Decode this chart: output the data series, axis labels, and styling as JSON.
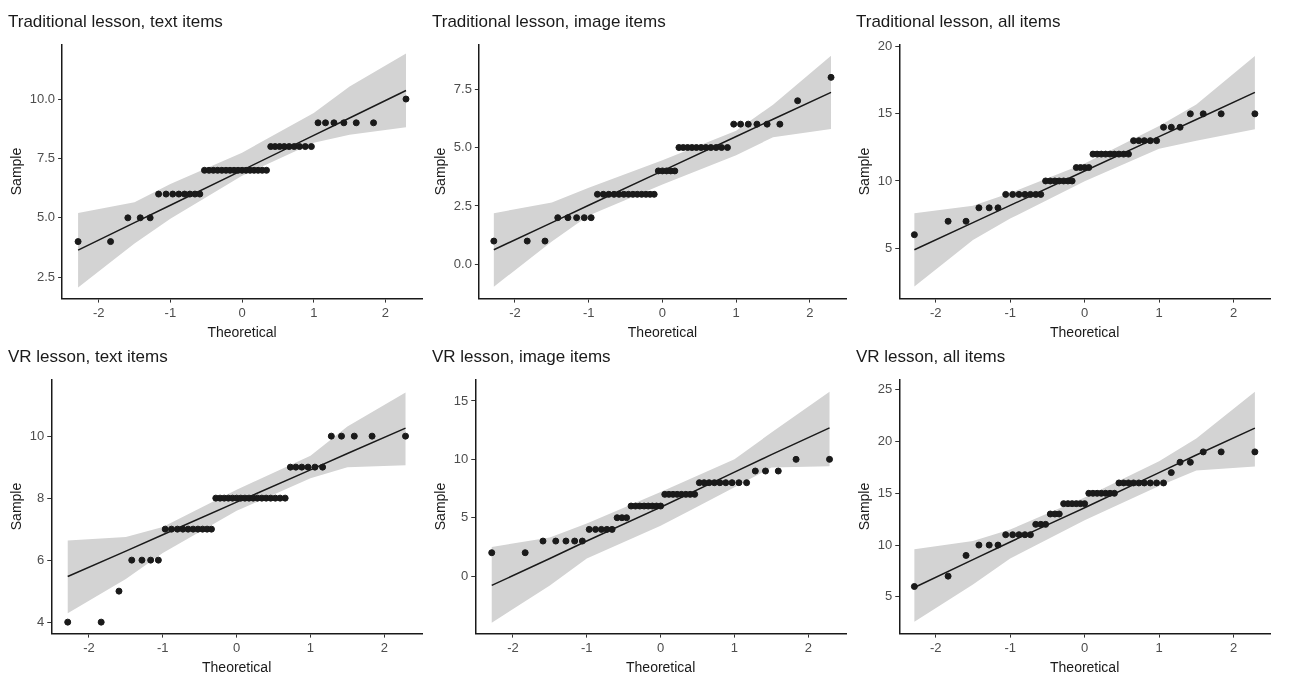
{
  "chart_data": [
    {
      "type": "scatter",
      "title": "Traditional lesson, text items",
      "xlabel": "Theoretical",
      "ylabel": "Sample",
      "grid": false,
      "xlim": [
        -2.51,
        2.51
      ],
      "xticks": [
        -2,
        -1,
        0,
        1,
        2
      ],
      "ylim": [
        1.6,
        12.3
      ],
      "yticks": [
        {
          "value": 2.5,
          "label": "2.5"
        },
        {
          "value": 5,
          "label": "5.0"
        },
        {
          "value": 7.5,
          "label": "7.5"
        },
        {
          "value": 10,
          "label": "10.0"
        }
      ],
      "x": [
        -2.287,
        -1.834,
        -1.593,
        -1.42,
        -1.282,
        -1.164,
        -1.06,
        -0.967,
        -0.882,
        -0.802,
        -0.728,
        -0.657,
        -0.589,
        -0.524,
        -0.461,
        -0.4,
        -0.341,
        -0.282,
        -0.224,
        -0.168,
        -0.112,
        -0.056,
        0,
        0.056,
        0.112,
        0.168,
        0.224,
        0.282,
        0.341,
        0.4,
        0.461,
        0.524,
        0.589,
        0.657,
        0.728,
        0.802,
        0.882,
        0.967,
        1.06,
        1.164,
        1.282,
        1.42,
        1.593,
        1.834,
        2.287
      ],
      "series": [
        {
          "marker": "circle",
          "color": "#1a1a1a",
          "values": [
            4,
            4,
            5,
            5,
            5,
            6,
            6,
            6,
            6,
            6,
            6,
            6,
            6,
            7,
            7,
            7,
            7,
            7,
            7,
            7,
            7,
            7,
            7,
            7,
            7,
            7,
            7,
            7,
            7,
            8,
            8,
            8,
            8,
            8,
            8,
            8,
            8,
            8,
            9,
            9,
            9,
            9,
            9,
            9,
            10
          ]
        },
        {
          "type": "line",
          "color": "#1a1a1a",
          "x": [
            -2.287,
            -1.5,
            -1,
            0,
            1,
            1.5,
            2.287
          ],
          "values": [
            3.64,
            4.8,
            5.53,
            7.0,
            8.47,
            9.2,
            10.36
          ],
          "lower": [
            2.07,
            3.92,
            4.96,
            6.77,
            8.16,
            8.5,
            8.81
          ],
          "upper": [
            5.2,
            5.66,
            6.42,
            7.74,
            9.41,
            10.53,
            11.92
          ]
        }
      ]
    },
    {
      "type": "scatter",
      "title": "Traditional lesson, image items",
      "xlabel": "Theoretical",
      "ylabel": "Sample",
      "grid": false,
      "xlim": [
        -2.49,
        2.49
      ],
      "xticks": [
        -2,
        -1,
        0,
        1,
        2
      ],
      "ylim": [
        -1.46,
        9.41
      ],
      "yticks": [
        {
          "value": 0,
          "label": "0.0"
        },
        {
          "value": 2.5,
          "label": "2.5"
        },
        {
          "value": 5,
          "label": "5.0"
        },
        {
          "value": 7.5,
          "label": "7.5"
        }
      ],
      "x": [
        -2.287,
        -1.834,
        -1.593,
        -1.42,
        -1.282,
        -1.164,
        -1.06,
        -0.967,
        -0.882,
        -0.802,
        -0.728,
        -0.657,
        -0.589,
        -0.524,
        -0.461,
        -0.4,
        -0.341,
        -0.282,
        -0.224,
        -0.168,
        -0.112,
        -0.056,
        0,
        0.056,
        0.112,
        0.168,
        0.224,
        0.282,
        0.341,
        0.4,
        0.461,
        0.524,
        0.589,
        0.657,
        0.728,
        0.802,
        0.882,
        0.967,
        1.06,
        1.164,
        1.282,
        1.42,
        1.593,
        1.834,
        2.287
      ],
      "series": [
        {
          "marker": "circle",
          "color": "#1a1a1a",
          "values": [
            1,
            1,
            1,
            2,
            2,
            2,
            2,
            2,
            3,
            3,
            3,
            3,
            3,
            3,
            3,
            3,
            3,
            3,
            3,
            3,
            3,
            4,
            4,
            4,
            4,
            4,
            5,
            5,
            5,
            5,
            5,
            5,
            5,
            5,
            5,
            5,
            5,
            6,
            6,
            6,
            6,
            6,
            6,
            7,
            8
          ]
        },
        {
          "type": "line",
          "color": "#1a1a1a",
          "x": [
            -2.287,
            -1.5,
            -1,
            0,
            1,
            1.5,
            2.287
          ],
          "values": [
            0.63,
            1.79,
            2.53,
            4.0,
            5.47,
            6.21,
            7.36
          ],
          "lower": [
            -0.95,
            0.98,
            2.09,
            3.42,
            4.67,
            5.44,
            5.79
          ],
          "upper": [
            2.19,
            2.65,
            3.28,
            4.46,
            5.72,
            6.83,
            8.93
          ]
        }
      ]
    },
    {
      "type": "scatter",
      "title": "Traditional lesson, all items",
      "xlabel": "Theoretical",
      "ylabel": "Sample",
      "grid": false,
      "xlim": [
        -2.49,
        2.49
      ],
      "xticks": [
        -2,
        -1,
        0,
        1,
        2
      ],
      "ylim": [
        1.24,
        20.17
      ],
      "yticks": [
        5,
        10,
        15,
        20
      ],
      "x": [
        -2.287,
        -1.834,
        -1.593,
        -1.42,
        -1.282,
        -1.164,
        -1.06,
        -0.967,
        -0.882,
        -0.802,
        -0.728,
        -0.657,
        -0.589,
        -0.524,
        -0.461,
        -0.4,
        -0.341,
        -0.282,
        -0.224,
        -0.168,
        -0.112,
        -0.056,
        0,
        0.056,
        0.112,
        0.168,
        0.224,
        0.282,
        0.341,
        0.4,
        0.461,
        0.524,
        0.589,
        0.657,
        0.728,
        0.802,
        0.882,
        0.967,
        1.06,
        1.164,
        1.282,
        1.42,
        1.593,
        1.834,
        2.287
      ],
      "series": [
        {
          "marker": "circle",
          "color": "#1a1a1a",
          "values": [
            6,
            7,
            7,
            8,
            8,
            8,
            9,
            9,
            9,
            9,
            9,
            9,
            9,
            10,
            10,
            10,
            10,
            10,
            10,
            10,
            11,
            11,
            11,
            11,
            12,
            12,
            12,
            12,
            12,
            12,
            12,
            12,
            12,
            13,
            13,
            13,
            13,
            13,
            14,
            14,
            14,
            15,
            15,
            15,
            15
          ]
        },
        {
          "type": "line",
          "color": "#1a1a1a",
          "x": [
            -2.287,
            -1.5,
            -1,
            0,
            1,
            1.5,
            2.287
          ],
          "values": [
            4.88,
            6.9,
            8.18,
            10.74,
            13.3,
            14.58,
            16.6
          ],
          "lower": [
            2.14,
            5.6,
            7.2,
            9.98,
            12.4,
            13.0,
            13.86
          ],
          "upper": [
            7.6,
            8.15,
            9.1,
            11.3,
            14.1,
            15.7,
            19.3
          ]
        }
      ]
    },
    {
      "type": "scatter",
      "title": "VR lesson, text items",
      "xlabel": "Theoretical",
      "ylabel": "Sample",
      "grid": false,
      "xlim": [
        -2.51,
        2.51
      ],
      "xticks": [
        -2,
        -1,
        0,
        1,
        2
      ],
      "ylim": [
        3.63,
        11.83
      ],
      "yticks": [
        4,
        6,
        8,
        10
      ],
      "x": [
        -2.287,
        -1.834,
        -1.593,
        -1.42,
        -1.282,
        -1.164,
        -1.06,
        -0.967,
        -0.882,
        -0.802,
        -0.728,
        -0.657,
        -0.589,
        -0.524,
        -0.461,
        -0.4,
        -0.341,
        -0.282,
        -0.224,
        -0.168,
        -0.112,
        -0.056,
        0,
        0.056,
        0.112,
        0.168,
        0.224,
        0.282,
        0.341,
        0.4,
        0.461,
        0.524,
        0.589,
        0.657,
        0.728,
        0.802,
        0.882,
        0.967,
        1.06,
        1.164,
        1.282,
        1.42,
        1.593,
        1.834,
        2.287
      ],
      "series": [
        {
          "marker": "circle",
          "color": "#1a1a1a",
          "values": [
            4,
            4,
            5,
            6,
            6,
            6,
            6,
            7,
            7,
            7,
            7,
            7,
            7,
            7,
            7,
            7,
            7,
            8,
            8,
            8,
            8,
            8,
            8,
            8,
            8,
            8,
            8,
            8,
            8,
            8,
            8,
            8,
            8,
            8,
            9,
            9,
            9,
            9,
            9,
            9,
            10,
            10,
            10,
            10,
            10
          ]
        },
        {
          "type": "line",
          "color": "#1a1a1a",
          "x": [
            -2.287,
            -1.5,
            -1,
            0,
            1,
            1.5,
            2.287
          ],
          "values": [
            5.47,
            6.29,
            6.82,
            7.87,
            8.91,
            9.44,
            10.26
          ],
          "lower": [
            4.29,
            5.39,
            6.23,
            7.59,
            8.64,
            9.0,
            9.06
          ],
          "upper": [
            6.63,
            6.75,
            7.07,
            8.27,
            9.37,
            10.31,
            11.41
          ]
        }
      ]
    },
    {
      "type": "scatter",
      "title": "VR lesson, image items",
      "xlabel": "Theoretical",
      "ylabel": "Sample",
      "grid": false,
      "xlim": [
        -2.51,
        2.51
      ],
      "xticks": [
        -2,
        -1,
        0,
        1,
        2
      ],
      "ylim": [
        -4.93,
        16.85
      ],
      "yticks": [
        0,
        5,
        10,
        15
      ],
      "x": [
        -2.287,
        -1.834,
        -1.593,
        -1.42,
        -1.282,
        -1.164,
        -1.06,
        -0.967,
        -0.882,
        -0.802,
        -0.728,
        -0.657,
        -0.589,
        -0.524,
        -0.461,
        -0.4,
        -0.341,
        -0.282,
        -0.224,
        -0.168,
        -0.112,
        -0.056,
        0,
        0.056,
        0.112,
        0.168,
        0.224,
        0.282,
        0.341,
        0.4,
        0.461,
        0.524,
        0.589,
        0.657,
        0.728,
        0.802,
        0.882,
        0.967,
        1.06,
        1.164,
        1.282,
        1.42,
        1.593,
        1.834,
        2.287
      ],
      "series": [
        {
          "marker": "circle",
          "color": "#1a1a1a",
          "values": [
            2,
            2,
            3,
            3,
            3,
            3,
            3,
            4,
            4,
            4,
            4,
            4,
            5,
            5,
            5,
            6,
            6,
            6,
            6,
            6,
            6,
            6,
            6,
            7,
            7,
            7,
            7,
            7,
            7,
            7,
            7,
            8,
            8,
            8,
            8,
            8,
            8,
            8,
            8,
            8,
            9,
            9,
            9,
            10,
            10
          ]
        },
        {
          "type": "line",
          "color": "#1a1a1a",
          "x": [
            -2.287,
            -1.5,
            -1,
            0,
            1,
            1.5,
            2.287
          ],
          "values": [
            -0.8,
            1.5,
            3.0,
            5.9,
            8.9,
            10.4,
            12.7
          ],
          "lower": [
            -4.0,
            -0.8,
            1.5,
            4.3,
            7.6,
            9.3,
            9.4
          ],
          "upper": [
            2.5,
            3.3,
            4.5,
            7.2,
            10.0,
            12.3,
            15.8
          ]
        }
      ]
    },
    {
      "type": "scatter",
      "title": "VR lesson, all items",
      "xlabel": "Theoretical",
      "ylabel": "Sample",
      "grid": false,
      "xlim": [
        -2.49,
        2.49
      ],
      "xticks": [
        -2,
        -1,
        0,
        1,
        2
      ],
      "ylim": [
        1.45,
        26.0
      ],
      "yticks": [
        5,
        10,
        15,
        20,
        25
      ],
      "x": [
        -2.287,
        -1.834,
        -1.593,
        -1.42,
        -1.282,
        -1.164,
        -1.06,
        -0.967,
        -0.882,
        -0.802,
        -0.728,
        -0.657,
        -0.589,
        -0.524,
        -0.461,
        -0.4,
        -0.341,
        -0.282,
        -0.224,
        -0.168,
        -0.112,
        -0.056,
        0,
        0.056,
        0.112,
        0.168,
        0.224,
        0.282,
        0.341,
        0.4,
        0.461,
        0.524,
        0.589,
        0.657,
        0.728,
        0.802,
        0.882,
        0.967,
        1.06,
        1.164,
        1.282,
        1.42,
        1.593,
        1.834,
        2.287
      ],
      "series": [
        {
          "marker": "circle",
          "color": "#1a1a1a",
          "values": [
            6,
            7,
            9,
            10,
            10,
            10,
            11,
            11,
            11,
            11,
            11,
            12,
            12,
            12,
            13,
            13,
            13,
            14,
            14,
            14,
            14,
            14,
            14,
            15,
            15,
            15,
            15,
            15,
            15,
            15,
            16,
            16,
            16,
            16,
            16,
            16,
            16,
            16,
            16,
            17,
            18,
            18,
            19,
            19,
            19
          ]
        },
        {
          "type": "line",
          "color": "#1a1a1a",
          "x": [
            -2.287,
            -1.5,
            -1,
            0,
            1,
            1.5,
            2.287
          ],
          "values": [
            5.9,
            8.6,
            10.3,
            13.6,
            17.0,
            18.7,
            21.3
          ],
          "lower": [
            2.6,
            6.2,
            8.7,
            12.4,
            15.7,
            17.2,
            17.6
          ],
          "upper": [
            9.6,
            10.4,
            11.5,
            14.6,
            18.1,
            20.3,
            24.8
          ]
        }
      ]
    }
  ]
}
